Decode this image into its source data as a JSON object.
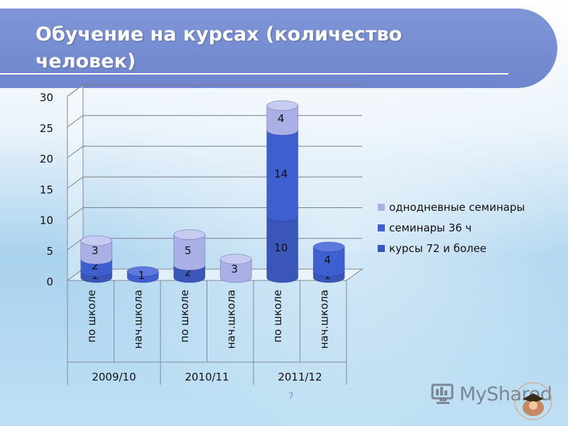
{
  "title": "Обучение на курсах  (количество человек)",
  "page_number": "7",
  "watermark": "MyShared",
  "colors": {
    "title_band": "#7189d2",
    "series_72": "#3a56b8",
    "series_36": "#3d5fd0",
    "series_one_day": "#aab0e6"
  },
  "chart_data": {
    "type": "bar",
    "stacked": true,
    "three_d": true,
    "ylim": [
      0,
      30
    ],
    "yticks": [
      "0",
      "5",
      "10",
      "15",
      "20",
      "25",
      "30"
    ],
    "categories": [
      "по школе",
      "нач.школа",
      "по школе",
      "нач.школа",
      "по школе",
      "нач.школа"
    ],
    "groups": [
      {
        "label": "2009/10",
        "span": [
          0,
          1
        ]
      },
      {
        "label": "2010/11",
        "span": [
          2,
          3
        ]
      },
      {
        "label": "2011/12",
        "span": [
          4,
          5
        ]
      }
    ],
    "series": [
      {
        "name": "курсы 72 и более",
        "color": "#3a56b8",
        "values": [
          1,
          0,
          2,
          0,
          10,
          1
        ],
        "labels": [
          "1",
          "",
          "2",
          "",
          "10",
          "1"
        ]
      },
      {
        "name": "семинары 36 ч",
        "color": "#3d5fd0",
        "values": [
          2,
          1,
          0,
          0,
          14,
          4
        ],
        "labels": [
          "2",
          "1",
          "",
          "",
          "14",
          "4"
        ]
      },
      {
        "name": "однодневные семинары",
        "color": "#aab0e6",
        "values": [
          3,
          0,
          5,
          3,
          4,
          0
        ],
        "labels": [
          "3",
          "",
          "5",
          "3",
          "4",
          ""
        ]
      }
    ],
    "legend_position": "right",
    "grid": true
  }
}
